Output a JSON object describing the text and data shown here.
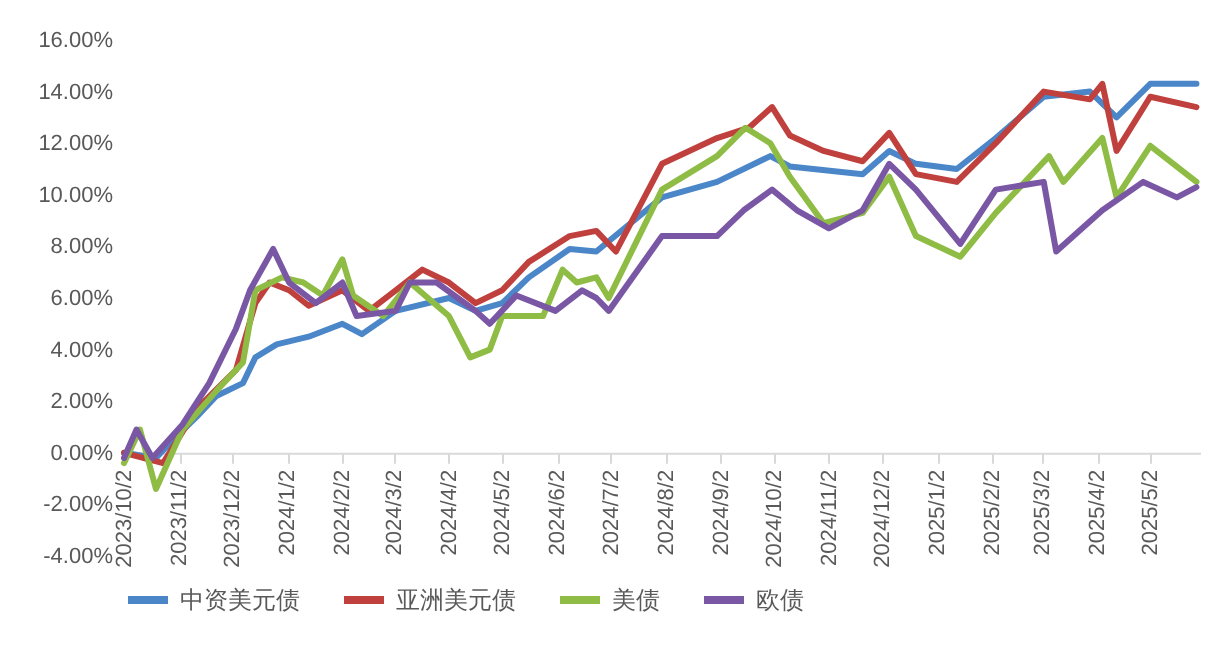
{
  "chart_data": {
    "type": "line",
    "legend": "bottom",
    "grid": false,
    "ylim": [
      -4,
      16
    ],
    "yticks": [
      {
        "value": -4,
        "label": "-4.00%"
      },
      {
        "value": -2,
        "label": "-2.00%"
      },
      {
        "value": 0,
        "label": "0.00%"
      },
      {
        "value": 2,
        "label": "2.00%"
      },
      {
        "value": 4,
        "label": "4.00%"
      },
      {
        "value": 6,
        "label": "6.00%"
      },
      {
        "value": 8,
        "label": "8.00%"
      },
      {
        "value": 10,
        "label": "10.00%"
      },
      {
        "value": 12,
        "label": "12.00%"
      },
      {
        "value": 14,
        "label": "14.00%"
      },
      {
        "value": 16,
        "label": "16.00%"
      }
    ],
    "xlim": [
      "2023-10-02",
      "2025-05-30"
    ],
    "xticks": [
      {
        "value": "2023-10-02",
        "label": "2023/10/2"
      },
      {
        "value": "2023-11-02",
        "label": "2023/11/2"
      },
      {
        "value": "2023-12-02",
        "label": "2023/12/2"
      },
      {
        "value": "2024-01-02",
        "label": "2024/1/2"
      },
      {
        "value": "2024-02-02",
        "label": "2024/2/2"
      },
      {
        "value": "2024-03-02",
        "label": "2024/3/2"
      },
      {
        "value": "2024-04-02",
        "label": "2024/4/2"
      },
      {
        "value": "2024-05-02",
        "label": "2024/5/2"
      },
      {
        "value": "2024-06-02",
        "label": "2024/6/2"
      },
      {
        "value": "2024-07-02",
        "label": "2024/7/2"
      },
      {
        "value": "2024-08-02",
        "label": "2024/8/2"
      },
      {
        "value": "2024-09-02",
        "label": "2024/9/2"
      },
      {
        "value": "2024-10-02",
        "label": "2024/10/2"
      },
      {
        "value": "2024-11-02",
        "label": "2024/11/2"
      },
      {
        "value": "2024-12-02",
        "label": "2024/12/2"
      },
      {
        "value": "2025-01-02",
        "label": "2025/1/2"
      },
      {
        "value": "2025-02-02",
        "label": "2025/2/2"
      },
      {
        "value": "2025-03-02",
        "label": "2025/3/2"
      },
      {
        "value": "2025-04-02",
        "label": "2025/4/2"
      },
      {
        "value": "2025-05-02",
        "label": "2025/5/2"
      }
    ],
    "series": [
      {
        "name": "中资美元债",
        "color": "#4a86c8",
        "x": [
          "2023-10-02",
          "2023-10-20",
          "2023-10-31",
          "2023-11-12",
          "2023-11-23",
          "2023-12-08",
          "2023-12-15",
          "2023-12-27",
          "2024-01-14",
          "2024-02-02",
          "2024-02-13",
          "2024-03-03",
          "2024-04-02",
          "2024-04-17",
          "2024-05-02",
          "2024-05-17",
          "2024-06-09",
          "2024-06-24",
          "2024-07-31",
          "2024-08-31",
          "2024-09-30",
          "2024-10-11",
          "2024-11-21",
          "2024-12-06",
          "2024-12-21",
          "2025-01-13",
          "2025-02-04",
          "2025-03-03",
          "2025-03-29",
          "2025-04-13",
          "2025-05-02",
          "2025-05-28"
        ],
        "values": [
          0,
          -0.2,
          0.6,
          1.4,
          2.2,
          2.7,
          3.7,
          4.2,
          4.5,
          5.0,
          4.6,
          5.5,
          6.0,
          5.5,
          5.8,
          6.8,
          7.9,
          7.8,
          9.9,
          10.5,
          11.5,
          11.1,
          10.8,
          11.7,
          11.2,
          11.0,
          12.2,
          13.8,
          14.0,
          13.0,
          14.3,
          14.3
        ]
      },
      {
        "name": "亚洲美元债",
        "color": "#c0403d",
        "x": [
          "2023-10-02",
          "2023-10-24",
          "2023-11-12",
          "2023-12-04",
          "2023-12-15",
          "2023-12-23",
          "2024-01-03",
          "2024-01-14",
          "2024-02-02",
          "2024-02-17",
          "2024-03-03",
          "2024-03-18",
          "2024-04-02",
          "2024-04-17",
          "2024-05-02",
          "2024-05-17",
          "2024-06-09",
          "2024-06-24",
          "2024-07-05",
          "2024-07-31",
          "2024-08-31",
          "2024-09-18",
          "2024-10-01",
          "2024-10-11",
          "2024-10-30",
          "2024-11-21",
          "2024-12-06",
          "2024-12-21",
          "2025-01-13",
          "2025-02-04",
          "2025-03-03",
          "2025-03-29",
          "2025-04-05",
          "2025-04-13",
          "2025-05-02",
          "2025-05-28"
        ],
        "values": [
          0,
          -0.4,
          1.7,
          3.2,
          5.8,
          6.6,
          6.3,
          5.7,
          6.3,
          5.5,
          6.3,
          7.1,
          6.6,
          5.8,
          6.3,
          7.4,
          8.4,
          8.6,
          7.8,
          11.2,
          12.2,
          12.6,
          13.4,
          12.3,
          11.7,
          11.3,
          12.4,
          10.8,
          10.5,
          12.0,
          14.0,
          13.7,
          14.3,
          11.7,
          13.8,
          13.4
        ]
      },
      {
        "name": "美债",
        "color": "#8fbc45",
        "x": [
          "2023-10-02",
          "2023-10-11",
          "2023-10-20",
          "2023-11-04",
          "2023-11-23",
          "2023-12-08",
          "2023-12-15",
          "2023-12-30",
          "2024-01-11",
          "2024-01-22",
          "2024-02-02",
          "2024-02-08",
          "2024-02-25",
          "2024-03-11",
          "2024-04-02",
          "2024-04-14",
          "2024-04-25",
          "2024-05-02",
          "2024-05-25",
          "2024-06-05",
          "2024-06-13",
          "2024-06-24",
          "2024-07-01",
          "2024-07-31",
          "2024-08-31",
          "2024-09-16",
          "2024-09-30",
          "2024-10-11",
          "2024-10-30",
          "2024-11-21",
          "2024-12-06",
          "2024-12-21",
          "2025-01-15",
          "2025-02-04",
          "2025-03-06",
          "2025-03-14",
          "2025-04-05",
          "2025-04-13",
          "2025-05-02",
          "2025-05-28"
        ],
        "values": [
          -0.4,
          0.9,
          -1.4,
          0.9,
          2.4,
          3.5,
          6.3,
          6.8,
          6.6,
          6.1,
          7.5,
          6.1,
          5.3,
          6.6,
          5.3,
          3.7,
          4.0,
          5.3,
          5.3,
          7.1,
          6.6,
          6.8,
          6.0,
          10.2,
          11.5,
          12.6,
          12.0,
          10.7,
          8.9,
          9.3,
          10.7,
          8.4,
          7.6,
          9.3,
          11.5,
          10.5,
          12.2,
          9.9,
          11.9,
          10.5
        ]
      },
      {
        "name": "欧债",
        "color": "#7a57a5",
        "x": [
          "2023-10-02",
          "2023-10-09",
          "2023-10-18",
          "2023-11-04",
          "2023-11-19",
          "2023-12-04",
          "2023-12-12",
          "2023-12-25",
          "2024-01-03",
          "2024-01-18",
          "2024-02-02",
          "2024-02-10",
          "2024-03-03",
          "2024-03-11",
          "2024-03-26",
          "2024-04-17",
          "2024-04-25",
          "2024-05-10",
          "2024-06-01",
          "2024-06-16",
          "2024-06-24",
          "2024-07-01",
          "2024-07-31",
          "2024-08-31",
          "2024-09-15",
          "2024-10-01",
          "2024-10-15",
          "2024-11-02",
          "2024-11-21",
          "2024-12-06",
          "2024-12-21",
          "2025-01-15",
          "2025-02-04",
          "2025-03-03",
          "2025-03-10",
          "2025-04-05",
          "2025-04-28",
          "2025-05-17",
          "2025-05-28"
        ],
        "values": [
          -0.2,
          0.9,
          -0.2,
          1.1,
          2.7,
          4.8,
          6.3,
          7.9,
          6.6,
          5.8,
          6.6,
          5.3,
          5.5,
          6.6,
          6.6,
          5.5,
          5.0,
          6.1,
          5.5,
          6.3,
          6.0,
          5.5,
          8.4,
          8.4,
          9.4,
          10.2,
          9.4,
          8.7,
          9.4,
          11.2,
          10.2,
          8.1,
          10.2,
          10.5,
          7.8,
          9.4,
          10.5,
          9.9,
          10.3
        ]
      }
    ]
  }
}
